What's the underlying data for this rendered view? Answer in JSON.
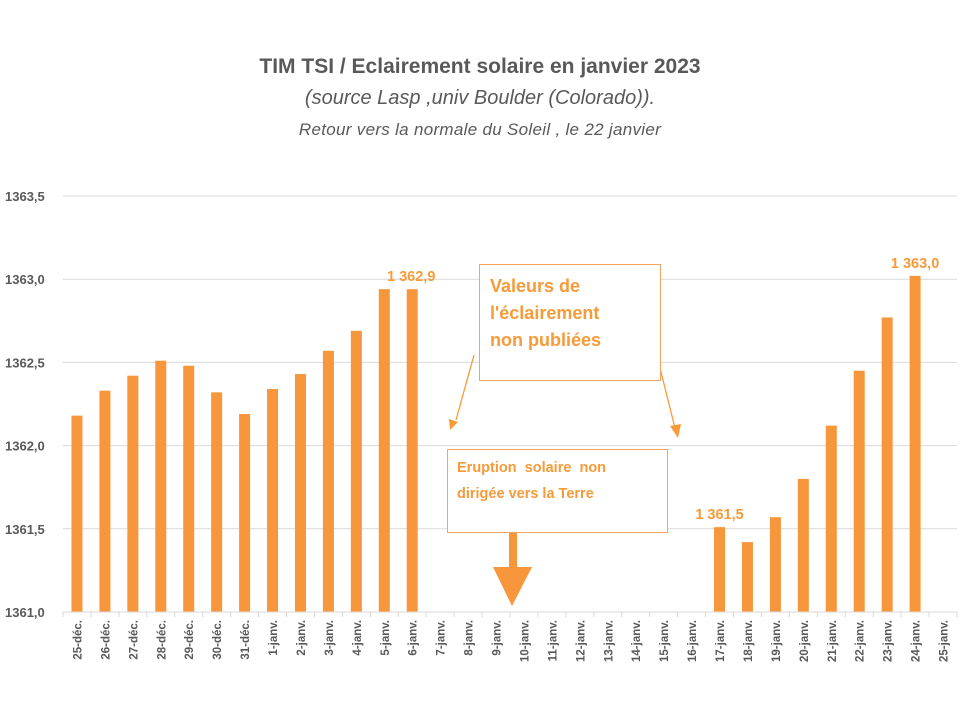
{
  "titles": {
    "main": "TIM TSI / Eclairement solaire en janvier 2023",
    "source": "(source Lasp ,univ Boulder (Colorado)).",
    "subtitle": "Retour vers la normale du Soleil  , le 22 janvier"
  },
  "annotations": {
    "unpublished": "Valeurs de l'éclairement non publiées",
    "unpublished_lines": [
      "Valeurs de",
      "l'éclairement",
      "non publiées"
    ],
    "eruption": "Eruption  solaire  non dirigée vers la Terre",
    "eruption_lines": [
      "Eruption  solaire  non",
      "dirigée vers la Terre"
    ]
  },
  "colors": {
    "bar": "#F7963A",
    "label": "#F79A38",
    "text": "#595959",
    "grid": "#D9D9D9"
  },
  "chart_data": {
    "type": "bar",
    "title": "TIM TSI / Eclairement solaire en janvier 2023",
    "xlabel": "",
    "ylabel": "",
    "ylim": [
      1361.0,
      1363.5
    ],
    "yticks": [
      1361.0,
      1361.5,
      1362.0,
      1362.5,
      1363.0,
      1363.5
    ],
    "ytick_labels": [
      "1361,0",
      "1361,5",
      "1362,0",
      "1362,5",
      "1363,0",
      "1363,5"
    ],
    "grid": true,
    "legend": "none",
    "categories": [
      "25-déc.",
      "26-déc.",
      "27-déc.",
      "28-déc.",
      "29-déc.",
      "30-déc.",
      "31-déc.",
      "1-janv.",
      "2-janv.",
      "3-janv.",
      "4-janv.",
      "5-janv.",
      "6-janv.",
      "7-janv.",
      "8-janv.",
      "9-janv.",
      "10-janv.",
      "11-janv.",
      "12-janv.",
      "13-janv.",
      "14-janv.",
      "15-janv.",
      "16-janv.",
      "17-janv.",
      "18-janv.",
      "19-janv.",
      "20-janv.",
      "21-janv.",
      "22-janv.",
      "23-janv.",
      "24-janv.",
      "25-janv."
    ],
    "values": [
      1362.18,
      1362.33,
      1362.42,
      1362.51,
      1362.48,
      1362.32,
      1362.19,
      1362.34,
      1362.43,
      1362.57,
      1362.69,
      1362.94,
      1362.94,
      null,
      null,
      null,
      null,
      null,
      null,
      null,
      null,
      null,
      null,
      1361.51,
      1361.42,
      1361.57,
      1361.8,
      1362.12,
      1362.45,
      1362.77,
      1363.02,
      null
    ],
    "data_labels": [
      {
        "category": "6-janv.",
        "text": "1 362,9"
      },
      {
        "category": "17-janv.",
        "text": "1 361,5"
      },
      {
        "category": "24-janv.",
        "text": "1 363,0"
      }
    ]
  }
}
